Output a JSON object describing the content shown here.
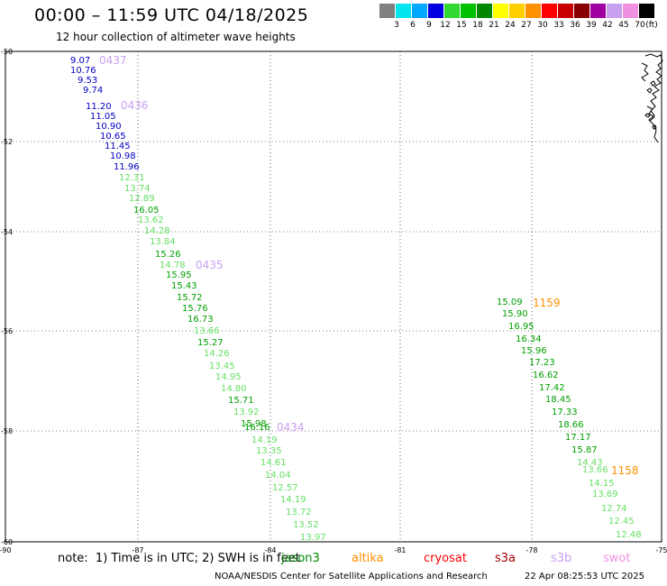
{
  "header": {
    "title": "00:00 – 11:59 UTC 04/18/2025",
    "subtitle": "12 hour collection of altimeter wave heights"
  },
  "legend": {
    "unit": "(ft)",
    "items": [
      {
        "label": "3",
        "color": "#808080"
      },
      {
        "label": "6",
        "color": "#00e5ee"
      },
      {
        "label": "9",
        "color": "#00a8ff"
      },
      {
        "label": "12",
        "color": "#0000e0"
      },
      {
        "label": "15",
        "color": "#32d932"
      },
      {
        "label": "18",
        "color": "#00c000"
      },
      {
        "label": "21",
        "color": "#008800"
      },
      {
        "label": "24",
        "color": "#ffff00"
      },
      {
        "label": "27",
        "color": "#ffd000"
      },
      {
        "label": "30",
        "color": "#ff9000"
      },
      {
        "label": "33",
        "color": "#ff0000"
      },
      {
        "label": "36",
        "color": "#c80000"
      },
      {
        "label": "39",
        "color": "#880000"
      },
      {
        "label": "42",
        "color": "#a000a0"
      },
      {
        "label": "45",
        "color": "#c8a0f0"
      },
      {
        "label": "70",
        "color": "#f090e0"
      },
      {
        "label": "",
        "color": "#000000"
      }
    ]
  },
  "axes": {
    "lon_ticks": [
      "-90",
      "-87",
      "-84",
      "-81",
      "-78",
      "-75"
    ],
    "lat_ticks": [
      "-50",
      "-52",
      "-54",
      "-56",
      "-58",
      "-60"
    ]
  },
  "track_labels": [
    {
      "text": "0437",
      "color": "#c8a0f0"
    },
    {
      "text": "0436",
      "color": "#c8a0f0"
    },
    {
      "text": "0435",
      "color": "#c8a0f0"
    },
    {
      "text": "0434",
      "color": "#c8a0f0"
    },
    {
      "text": "1159",
      "color": "#ff9000"
    },
    {
      "text": "1158",
      "color": "#ff9000"
    }
  ],
  "tracks": [
    {
      "points": [
        {
          "v": "9.07",
          "c": "#0000c0"
        },
        {
          "v": "10.76",
          "c": "#0000c0"
        },
        {
          "v": "9.53",
          "c": "#0000c0"
        },
        {
          "v": "9.74",
          "c": "#0000c0"
        },
        {
          "v": "11.20",
          "c": "#0000c0"
        },
        {
          "v": "11.05",
          "c": "#0000c0"
        },
        {
          "v": "10.90",
          "c": "#0000c0"
        },
        {
          "v": "10.65",
          "c": "#0000c0"
        },
        {
          "v": "11.45",
          "c": "#0000c0"
        },
        {
          "v": "10.98",
          "c": "#0000c0"
        },
        {
          "v": "11.96",
          "c": "#0000c0"
        },
        {
          "v": "12.31",
          "c": "#66e066"
        },
        {
          "v": "13.74",
          "c": "#66e066"
        },
        {
          "v": "12.89",
          "c": "#66e066"
        },
        {
          "v": "16.05",
          "c": "#00a000"
        },
        {
          "v": "13.62",
          "c": "#66e066"
        },
        {
          "v": "14.28",
          "c": "#66e066"
        },
        {
          "v": "13.84",
          "c": "#66e066"
        },
        {
          "v": "15.26",
          "c": "#00a000"
        },
        {
          "v": "14.78",
          "c": "#66e066"
        },
        {
          "v": "15.95",
          "c": "#00a000"
        },
        {
          "v": "15.43",
          "c": "#00a000"
        },
        {
          "v": "15.72",
          "c": "#00a000"
        },
        {
          "v": "15.76",
          "c": "#00a000"
        },
        {
          "v": "16.73",
          "c": "#00a000"
        },
        {
          "v": "13.66",
          "c": "#66e066"
        },
        {
          "v": "15.27",
          "c": "#00a000"
        },
        {
          "v": "14.26",
          "c": "#66e066"
        },
        {
          "v": "13.45",
          "c": "#66e066"
        },
        {
          "v": "14.95",
          "c": "#66e066"
        },
        {
          "v": "14.80",
          "c": "#66e066"
        },
        {
          "v": "15.71",
          "c": "#00a000"
        },
        {
          "v": "13.92",
          "c": "#66e066"
        },
        {
          "v": "15.98",
          "c": "#00a000"
        },
        {
          "v": "16.16",
          "c": "#00a000"
        },
        {
          "v": "14.19",
          "c": "#66e066"
        },
        {
          "v": "13.35",
          "c": "#66e066"
        },
        {
          "v": "14.61",
          "c": "#66e066"
        },
        {
          "v": "14.04",
          "c": "#66e066"
        },
        {
          "v": "12.57",
          "c": "#66e066"
        },
        {
          "v": "14.19",
          "c": "#66e066"
        },
        {
          "v": "13.72",
          "c": "#66e066"
        },
        {
          "v": "13.52",
          "c": "#66e066"
        },
        {
          "v": "13.97",
          "c": "#66e066"
        }
      ]
    },
    {
      "points": [
        {
          "v": "15.09",
          "c": "#00a000"
        },
        {
          "v": "15.90",
          "c": "#00a000"
        },
        {
          "v": "16.95",
          "c": "#00a000"
        },
        {
          "v": "16.34",
          "c": "#00a000"
        },
        {
          "v": "15.96",
          "c": "#00a000"
        },
        {
          "v": "17.23",
          "c": "#00a000"
        },
        {
          "v": "16.62",
          "c": "#00a000"
        },
        {
          "v": "17.42",
          "c": "#00a000"
        },
        {
          "v": "18.45",
          "c": "#00a000"
        },
        {
          "v": "17.33",
          "c": "#00a000"
        },
        {
          "v": "18.66",
          "c": "#00a000"
        },
        {
          "v": "17.17",
          "c": "#00a000"
        },
        {
          "v": "15.87",
          "c": "#00a000"
        },
        {
          "v": "14.43",
          "c": "#66e066"
        },
        {
          "v": "13.66",
          "c": "#66e066"
        },
        {
          "v": "14.15",
          "c": "#66e066"
        },
        {
          "v": "13.69",
          "c": "#66e066"
        },
        {
          "v": "12.74",
          "c": "#66e066"
        },
        {
          "v": "12.45",
          "c": "#66e066"
        },
        {
          "v": "12.48",
          "c": "#66e066"
        }
      ]
    }
  ],
  "footer": {
    "note": "note:  1) Time is in UTC; 2) SWH is in feet",
    "satellites": [
      {
        "name": "jason3",
        "color": "#008800"
      },
      {
        "name": "altika",
        "color": "#ff9000"
      },
      {
        "name": "cryosat",
        "color": "#ff0000"
      },
      {
        "name": "s3a",
        "color": "#a00000"
      },
      {
        "name": "s3b",
        "color": "#c8a0f0"
      },
      {
        "name": "swot",
        "color": "#f090e0"
      }
    ],
    "credit": "NOAA/NESDIS Center for Satellite Applications and Research",
    "timestamp": "22 Apr 08:25:53 UTC 2025"
  }
}
